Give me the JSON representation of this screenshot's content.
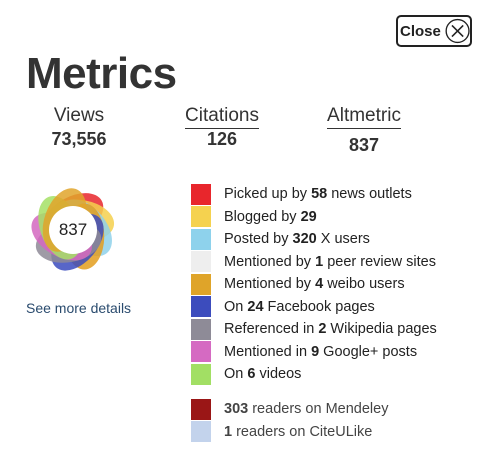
{
  "close_button": {
    "label": "Close"
  },
  "title": "Metrics",
  "stats": {
    "views": {
      "label": "Views",
      "value": "73,556"
    },
    "citations": {
      "label": "Citations",
      "value": "126"
    },
    "altmetric": {
      "label": "Altmetric",
      "value": "837"
    }
  },
  "altmetric_badge": {
    "score": "837",
    "see_more_label": "See more details",
    "ring_colors": [
      "#e8262c",
      "#f4d04e",
      "#8fd1ea",
      "#e39d1d",
      "#3b4bbe",
      "#8e8a96",
      "#d467c0",
      "#a4e065",
      "#e0a52a"
    ]
  },
  "sources": [
    {
      "pre": "Picked up by ",
      "count": "58",
      "post": " news outlets",
      "color": "#e8262c"
    },
    {
      "pre": "Blogged by ",
      "count": "29",
      "post": "",
      "color": "#f5d24f"
    },
    {
      "pre": "Posted by ",
      "count": "320",
      "post": " X users",
      "color": "#8ed2ec"
    },
    {
      "pre": "Mentioned by ",
      "count": "1",
      "post": " peer review sites",
      "color": "#eeeeee"
    },
    {
      "pre": "Mentioned by ",
      "count": "4",
      "post": " weibo users",
      "color": "#dfa429"
    },
    {
      "pre": "On ",
      "count": "24",
      "post": " Facebook pages",
      "color": "#3c4cbd"
    },
    {
      "pre": "Referenced in ",
      "count": "2",
      "post": " Wikipedia pages",
      "color": "#8e8b97"
    },
    {
      "pre": "Mentioned in ",
      "count": "9",
      "post": " Google+ posts",
      "color": "#d56ac2"
    },
    {
      "pre": "On ",
      "count": "6",
      "post": " videos",
      "color": "#a2df64"
    }
  ],
  "readers": [
    {
      "count": "303",
      "post": " readers on Mendeley",
      "color": "#9a1616"
    },
    {
      "count": "1",
      "post": " readers on CiteULike",
      "color": "#c3d3ec"
    }
  ]
}
